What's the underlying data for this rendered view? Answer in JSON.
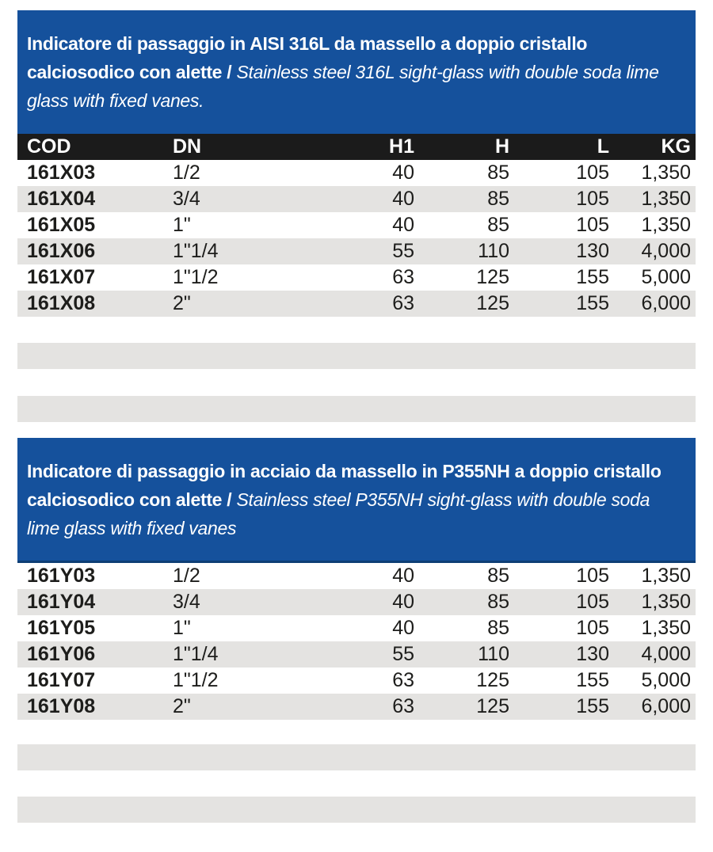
{
  "colors": {
    "header_blue": "#15519c",
    "header_blue_border": "#0e3e75",
    "table_header_bg": "#1b1b1b",
    "table_header_text": "#ffffff",
    "row_alt_bg": "#e4e3e1",
    "spacer_bar_bg": "#e4e3e1",
    "body_text": "#1d1d1b",
    "title_text": "#ffffff"
  },
  "table_columns": [
    "COD",
    "DN",
    "H1",
    "H",
    "L",
    "KG"
  ],
  "sections": [
    {
      "title_it": "Indicatore di passaggio in AISI 316L da massello a doppio cristallo calciosodico con alette /",
      "title_en": "Stainless steel 316L sight-glass with double soda lime glass with fixed vanes.",
      "rows": [
        [
          "161X03",
          "1/2",
          "40",
          "85",
          "105",
          "1,350"
        ],
        [
          "161X04",
          "3/4",
          "40",
          "85",
          "105",
          "1,350"
        ],
        [
          "161X05",
          "1\"",
          "40",
          "85",
          "105",
          "1,350"
        ],
        [
          "161X06",
          "1\"1/4",
          "55",
          "110",
          "130",
          "4,000"
        ],
        [
          "161X07",
          "1\"1/2",
          "63",
          "125",
          "155",
          "5,000"
        ],
        [
          "161X08",
          "2\"",
          "63",
          "125",
          "155",
          "6,000"
        ]
      ]
    },
    {
      "title_it": "Indicatore di passaggio in acciaio da massello in P355NH a doppio cristallo calciosodico con alette /",
      "title_en": "Stainless steel P355NH sight-glass with double soda lime glass with fixed vanes",
      "rows": [
        [
          "161Y03",
          "1/2",
          "40",
          "85",
          "105",
          "1,350"
        ],
        [
          "161Y04",
          "3/4",
          "40",
          "85",
          "105",
          "1,350"
        ],
        [
          "161Y05",
          "1\"",
          "40",
          "85",
          "105",
          "1,350"
        ],
        [
          "161Y06",
          "1\"1/4",
          "55",
          "110",
          "130",
          "4,000"
        ],
        [
          "161Y07",
          "1\"1/2",
          "63",
          "125",
          "155",
          "5,000"
        ],
        [
          "161Y08",
          "2\"",
          "63",
          "125",
          "155",
          "6,000"
        ]
      ]
    }
  ]
}
